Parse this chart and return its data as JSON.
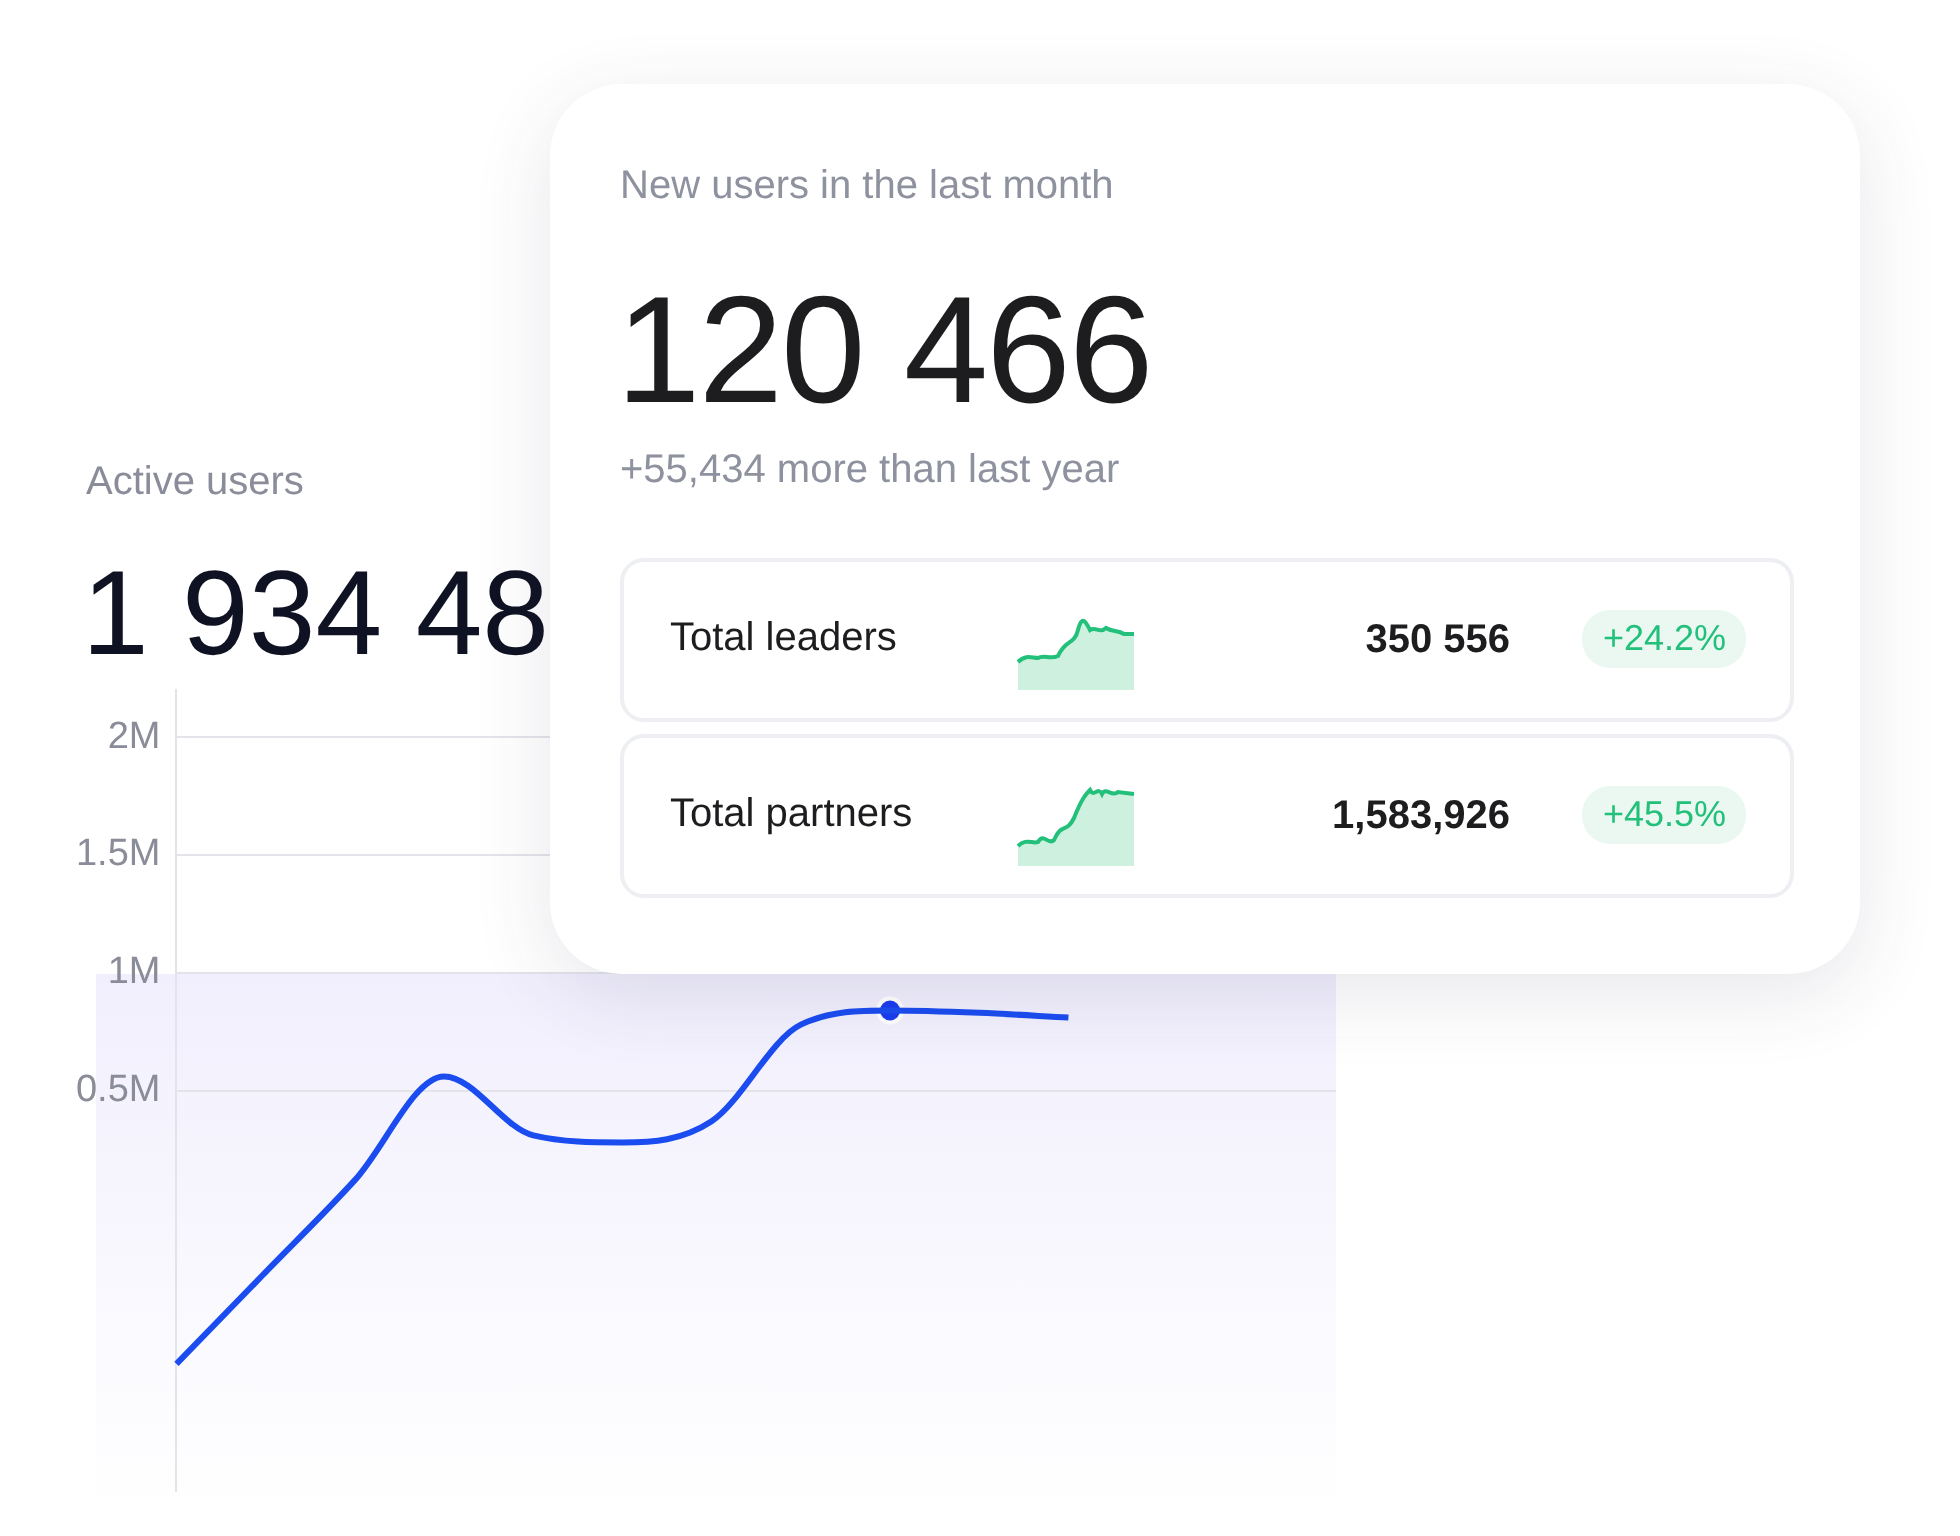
{
  "chart_data": [
    {
      "type": "line",
      "title": "Active users",
      "annotations": [
        "1 934 48"
      ],
      "categories": [
        null,
        null,
        null,
        null,
        null,
        null,
        null,
        null,
        null,
        null,
        null,
        null,
        null,
        null
      ],
      "series": [
        {
          "type": "line",
          "color": "#1a4cf0",
          "values": [
            -660000,
            -270000,
            120000,
            560000,
            310000,
            280000,
            370000,
            780000,
            840000,
            830000,
            810000,
            null,
            null,
            null
          ]
        },
        {
          "type": "scatter",
          "color": "#1a3cf0",
          "marker": "circle",
          "values": [
            null,
            null,
            null,
            null,
            null,
            null,
            null,
            null,
            840000,
            null,
            null,
            null,
            null,
            null
          ]
        }
      ],
      "ylim": [
        -1200000,
        2200000
      ],
      "yticks": [
        {
          "value": 500000,
          "label": "0.5M"
        },
        {
          "value": 1000000,
          "label": "1M"
        },
        {
          "value": 1500000,
          "label": "1.5M"
        },
        {
          "value": 2000000,
          "label": "2M"
        }
      ],
      "grid": "y",
      "tick_labels": "y",
      "legend": false,
      "marker": "none"
    },
    {
      "type": "other",
      "title": "New users in the last month",
      "annotations": [
        "120 466",
        "+55,434 more than last year"
      ]
    },
    {
      "type": "other",
      "title": "Total leaders",
      "annotations": [
        "350 556",
        "+24.2%"
      ]
    },
    {
      "type": "other",
      "title": "Total partners",
      "annotations": [
        "1,583,926",
        "+45.5%"
      ]
    }
  ]
}
